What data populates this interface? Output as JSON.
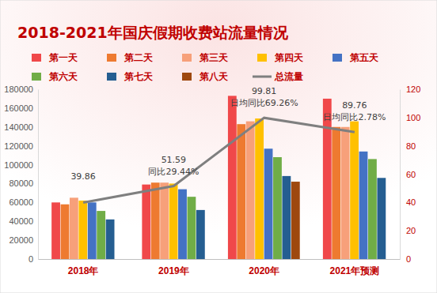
{
  "chart_data": {
    "type": "bar",
    "title": "2018-2021年国庆假期收费站流量情况",
    "categories": [
      "2018年",
      "2019年",
      "2020年",
      "2021年预测"
    ],
    "series": [
      {
        "name": "第一天",
        "color": "#f0484a",
        "values": [
          60000,
          79000,
          173000,
          170000
        ]
      },
      {
        "name": "第二天",
        "color": "#ee7a30",
        "values": [
          58000,
          81000,
          143000,
          140000
        ]
      },
      {
        "name": "第三天",
        "color": "#f7a07a",
        "values": [
          65000,
          81000,
          146000,
          140000
        ]
      },
      {
        "name": "第四天",
        "color": "#ffc000",
        "values": [
          62000,
          80000,
          149000,
          146000
        ]
      },
      {
        "name": "第五天",
        "color": "#4472c4",
        "values": [
          60000,
          74000,
          117000,
          114000
        ]
      },
      {
        "name": "第六天",
        "color": "#70ad47",
        "values": [
          51000,
          66000,
          108000,
          106000
        ]
      },
      {
        "name": "第七天",
        "color": "#255e91",
        "values": [
          42000,
          52000,
          88000,
          86000
        ]
      },
      {
        "name": "第八天",
        "color": "#9e480e",
        "values": [
          null,
          null,
          82000,
          null
        ]
      },
      {
        "name": "总流量",
        "color": "#7f7f7f",
        "type": "line",
        "axis": "y2",
        "line_style": "solid",
        "data_labels": true,
        "values": [
          39.86,
          51.59,
          99.81,
          89.76
        ]
      }
    ],
    "annotations": [
      {
        "category": "2019年",
        "text": "同比29.44%"
      },
      {
        "category": "2020年",
        "text": "日均同比69.26%"
      },
      {
        "category": "2021年预测",
        "text": "日均同比2.78%"
      }
    ],
    "ylim": [
      0,
      180000
    ],
    "yticks": [
      0,
      20000,
      40000,
      60000,
      80000,
      100000,
      120000,
      140000,
      160000,
      180000
    ],
    "y2lim": [
      0,
      120
    ],
    "y2ticks": [
      0,
      20,
      40,
      60,
      80,
      100,
      120
    ],
    "legend": "top"
  }
}
